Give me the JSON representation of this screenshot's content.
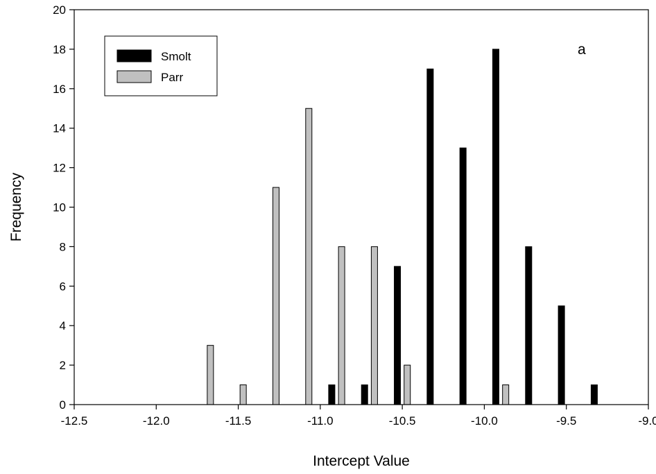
{
  "chart_data": {
    "type": "bar",
    "panel_label": "a",
    "xlabel": "Intercept Value",
    "ylabel": "Frequency",
    "xlim": [
      -12.5,
      -9.0
    ],
    "ylim": [
      0,
      20
    ],
    "xticks": [
      -12.5,
      -12.0,
      -11.5,
      -11.0,
      -10.5,
      -10.0,
      -9.5,
      -9.0
    ],
    "xtick_labels": [
      "-12.5",
      "-12.0",
      "-11.5",
      "-11.0",
      "-10.5",
      "-10.0",
      "-9.5",
      "-9.0"
    ],
    "yticks": [
      0,
      2,
      4,
      6,
      8,
      10,
      12,
      14,
      16,
      18,
      20
    ],
    "ytick_labels": [
      "0",
      "2",
      "4",
      "6",
      "8",
      "10",
      "12",
      "14",
      "16",
      "18",
      "20"
    ],
    "legend_position": "top-left",
    "series": [
      {
        "name": "Smolt",
        "color": "#000000",
        "x": [
          -10.93,
          -10.73,
          -10.53,
          -10.33,
          -10.13,
          -9.93,
          -9.73,
          -9.53,
          -9.33
        ],
        "values": [
          1,
          1,
          7,
          17,
          13,
          18,
          8,
          5,
          1
        ]
      },
      {
        "name": "Parr",
        "color": "#c0c0c0",
        "x": [
          -11.67,
          -11.47,
          -11.27,
          -11.07,
          -10.87,
          -10.67,
          -10.47,
          -9.87
        ],
        "values": [
          3,
          1,
          11,
          15,
          8,
          8,
          2,
          1
        ]
      }
    ]
  }
}
